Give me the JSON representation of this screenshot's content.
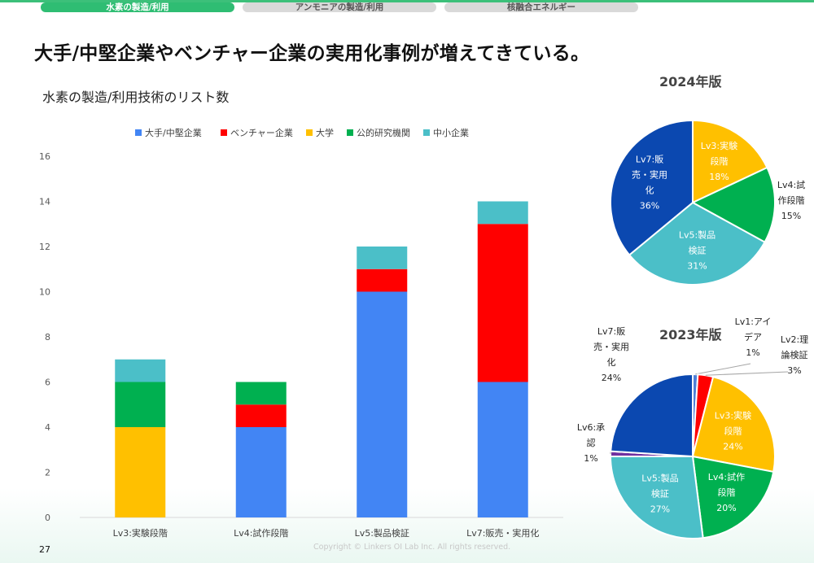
{
  "tabs": [
    {
      "label": "水素の製造/利用",
      "active": true
    },
    {
      "label": "アンモニアの製造/利用",
      "active": false
    },
    {
      "label": "核融合エネルギー",
      "active": false
    }
  ],
  "page_title": "大手/中堅企業やベンチャー企業の実用化事例が増えてきている。",
  "page_number": "27",
  "copyright": "Copyright © Linkers OI Lab Inc. All rights reserved.",
  "chart_data": [
    {
      "type": "bar",
      "stacked": true,
      "title": "水素の製造/利用技術のリスト数",
      "categories": [
        "Lv3:実験段階",
        "Lv4:試作段階",
        "Lv5:製品検証",
        "Lv7:販売・実用化"
      ],
      "series": [
        {
          "name": "大手/中堅企業",
          "color": "#4285f4",
          "values": [
            0,
            4,
            10,
            6
          ]
        },
        {
          "name": "ベンチャー企業",
          "color": "#ff0000",
          "values": [
            0,
            1,
            1,
            7
          ]
        },
        {
          "name": "大学",
          "color": "#ffc000",
          "values": [
            4,
            0,
            0,
            0
          ]
        },
        {
          "name": "公的研究機関",
          "color": "#00b050",
          "values": [
            2,
            1,
            0,
            0
          ]
        },
        {
          "name": "中小企業",
          "color": "#4bbfc8",
          "values": [
            1,
            0,
            1,
            1
          ]
        }
      ],
      "ylim": [
        0,
        16
      ],
      "yticks": [
        0,
        2,
        4,
        6,
        8,
        10,
        12,
        14,
        16
      ],
      "legend": "top",
      "grid": false
    },
    {
      "type": "pie",
      "title": "2024年版",
      "slices": [
        {
          "label_lines": [
            "Lv3:実験",
            "段階"
          ],
          "pct": "18%",
          "value": 18,
          "color": "#ffc000"
        },
        {
          "label_lines": [
            "Lv4:試",
            "作段階"
          ],
          "pct": "15%",
          "value": 15,
          "color": "#00b050"
        },
        {
          "label_lines": [
            "Lv5:製品",
            "検証"
          ],
          "pct": "31%",
          "value": 31,
          "color": "#4bbfc8"
        },
        {
          "label_lines": [
            "Lv7:販",
            "売・実用",
            "化"
          ],
          "pct": "36%",
          "value": 36,
          "color": "#0b48b0"
        }
      ]
    },
    {
      "type": "pie",
      "title": "2023年版",
      "slices": [
        {
          "label_lines": [
            "Lv1:アイ",
            "デア"
          ],
          "pct": "1%",
          "value": 1,
          "color": "#4f7fd6"
        },
        {
          "label_lines": [
            "Lv2:理",
            "論検証"
          ],
          "pct": "3%",
          "value": 3,
          "color": "#ff0000"
        },
        {
          "label_lines": [
            "Lv3:実験",
            "段階"
          ],
          "pct": "24%",
          "value": 24,
          "color": "#ffc000"
        },
        {
          "label_lines": [
            "Lv4:試作",
            "段階"
          ],
          "pct": "20%",
          "value": 20,
          "color": "#00b050"
        },
        {
          "label_lines": [
            "Lv5:製品",
            "検証"
          ],
          "pct": "27%",
          "value": 27,
          "color": "#4bbfc8"
        },
        {
          "label_lines": [
            "Lv6:承",
            "認"
          ],
          "pct": "1%",
          "value": 1,
          "color": "#7030a0"
        },
        {
          "label_lines": [
            "Lv7:販",
            "売・実用",
            "化"
          ],
          "pct": "24%",
          "value": 24,
          "color": "#0b48b0"
        }
      ]
    }
  ]
}
